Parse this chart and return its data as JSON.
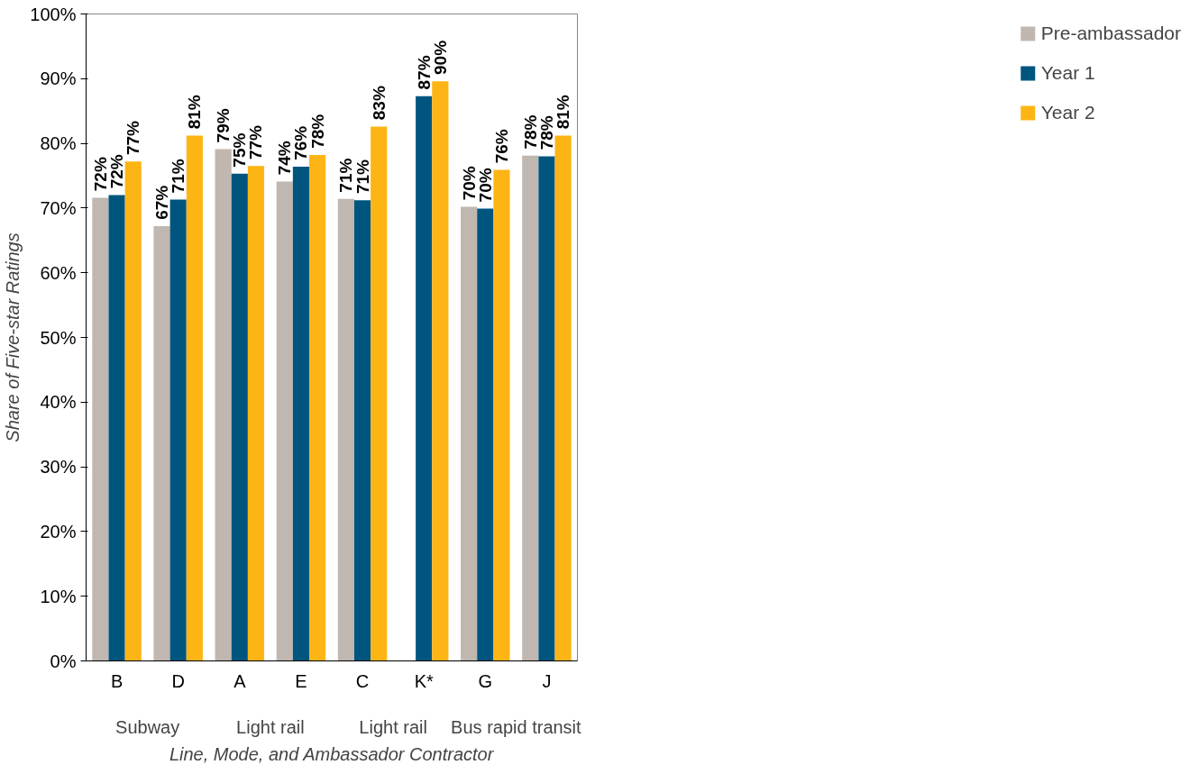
{
  "chart_data": {
    "type": "bar",
    "xlabel": "Line, Mode, and Ambassador Contractor",
    "ylabel": "Share of Five-star Ratings",
    "categories": [
      "B",
      "D",
      "A",
      "E",
      "C",
      "K*",
      "G",
      "J"
    ],
    "annotations": [
      "Subway",
      "Light rail",
      "Light rail",
      "Bus rapid transit"
    ],
    "series": [
      {
        "name": "Pre-ambassador",
        "color": "#bfb7b0",
        "values": [
          71.6,
          67.2,
          79.1,
          74.1,
          71.4,
          null,
          70.2,
          78.1
        ],
        "value_labels": [
          "72%",
          "67%",
          "79%",
          "74%",
          "71%",
          null,
          "70%",
          "78%"
        ]
      },
      {
        "name": "Year 1",
        "color": "#00557f",
        "values": [
          72.0,
          71.3,
          75.3,
          76.4,
          71.2,
          87.3,
          69.9,
          78.0
        ],
        "value_labels": [
          "72%",
          "71%",
          "75%",
          "76%",
          "71%",
          "87%",
          "70%",
          "78%"
        ]
      },
      {
        "name": "Year 2",
        "color": "#fdb515",
        "values": [
          77.2,
          81.2,
          76.5,
          78.2,
          82.6,
          89.6,
          75.9,
          81.2
        ],
        "value_labels": [
          "77%",
          "81%",
          "77%",
          "78%",
          "83%",
          "90%",
          "76%",
          "81%"
        ]
      }
    ],
    "ylim": [
      0,
      100
    ],
    "yticks": [
      {
        "value": 0,
        "label": "0%"
      },
      {
        "value": 10,
        "label": "10%"
      },
      {
        "value": 20,
        "label": "20%"
      },
      {
        "value": 30,
        "label": "30%"
      },
      {
        "value": 40,
        "label": "40%"
      },
      {
        "value": 50,
        "label": "50%"
      },
      {
        "value": 60,
        "label": "60%"
      },
      {
        "value": 70,
        "label": "70%"
      },
      {
        "value": 80,
        "label": "80%"
      },
      {
        "value": 90,
        "label": "90%"
      },
      {
        "value": 100,
        "label": "100%"
      }
    ],
    "grid": false,
    "legend": "right"
  }
}
